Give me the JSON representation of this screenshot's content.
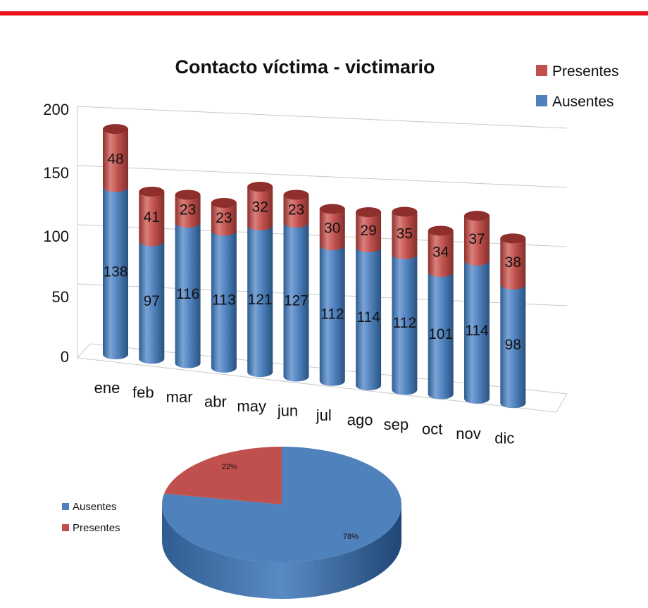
{
  "colors": {
    "rule": "#e8141c",
    "blue": "#4f81bd",
    "blue_light": "#7aa3d6",
    "blue_dark": "#2f5d91",
    "red": "#c0504d",
    "red_light": "#d9807c",
    "red_dark": "#8f2f2c",
    "grid": "#c8c8c8"
  },
  "chart_data": [
    {
      "type": "bar",
      "stacked": true,
      "three_d": true,
      "title": "Contacto víctima - victimario",
      "categories": [
        "ene",
        "feb",
        "mar",
        "abr",
        "may",
        "jun",
        "jul",
        "ago",
        "sep",
        "oct",
        "nov",
        "dic"
      ],
      "series": [
        {
          "name": "Ausentes",
          "color": "#4f81bd",
          "values": [
            138,
            97,
            116,
            113,
            121,
            127,
            112,
            114,
            112,
            101,
            114,
            98
          ]
        },
        {
          "name": "Presentes",
          "color": "#c0504d",
          "values": [
            48,
            41,
            23,
            23,
            32,
            23,
            30,
            29,
            35,
            34,
            37,
            38
          ]
        }
      ],
      "y_ticks": [
        0,
        50,
        100,
        150,
        200
      ],
      "ylim": [
        0,
        200
      ],
      "legend_position": "top-right",
      "legend_order": [
        "Presentes",
        "Ausentes"
      ],
      "grid": true
    },
    {
      "type": "pie",
      "three_d": true,
      "slices": [
        {
          "name": "Ausentes",
          "value": 78,
          "label": "78%",
          "color": "#4f81bd"
        },
        {
          "name": "Presentes",
          "value": 22,
          "label": "22%",
          "color": "#c0504d"
        }
      ],
      "legend_position": "left"
    }
  ]
}
